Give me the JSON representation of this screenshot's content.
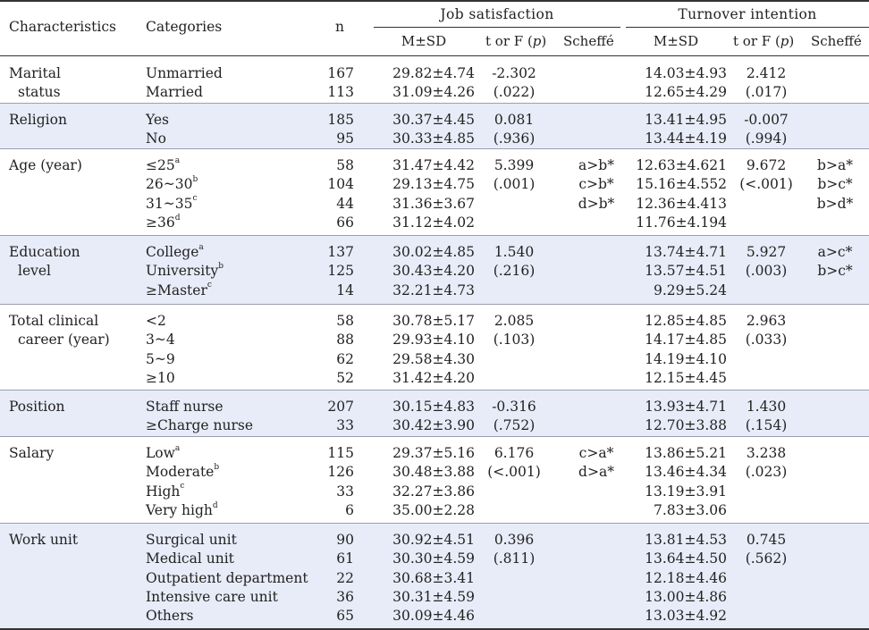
{
  "header": {
    "characteristics": "Characteristics",
    "categories": "Categories",
    "n": "n",
    "job_satisfaction": "Job satisfaction",
    "turnover_intention": "Turnover intention",
    "msd": "M±SD",
    "t_or_f_prefix": "t or F (",
    "p": "p",
    "t_or_f_suffix": ")",
    "scheffe": "Scheffé"
  },
  "colors": {
    "band": "#e8ecf8",
    "rule": "#333333",
    "text": "#222222"
  },
  "groups": [
    {
      "label": [
        "Marital",
        "status"
      ],
      "shaded": false,
      "rows": [
        {
          "cat": "Unmarried",
          "sup": "",
          "n": "167",
          "js_msd": "29.82±4.74",
          "js_stat": "-2.302",
          "js_sch": "",
          "ti_msd": "14.03±4.93",
          "ti_stat": "2.412",
          "ti_sch": ""
        },
        {
          "cat": "Married",
          "sup": "",
          "n": "113",
          "js_msd": "31.09±4.26",
          "js_stat": "(.022)",
          "js_sch": "",
          "ti_msd": "12.65±4.29",
          "ti_stat": "(.017)",
          "ti_sch": ""
        }
      ]
    },
    {
      "label": [
        "Religion"
      ],
      "shaded": true,
      "rows": [
        {
          "cat": "Yes",
          "sup": "",
          "n": "185",
          "js_msd": "30.37±4.45",
          "js_stat": "0.081",
          "js_sch": "",
          "ti_msd": "13.41±4.95",
          "ti_stat": "-0.007",
          "ti_sch": ""
        },
        {
          "cat": "No",
          "sup": "",
          "n": "95",
          "js_msd": "30.33±4.85",
          "js_stat": "(.936)",
          "js_sch": "",
          "ti_msd": "13.44±4.19",
          "ti_stat": "(.994)",
          "ti_sch": ""
        }
      ]
    },
    {
      "label": [
        "Age (year)"
      ],
      "shaded": false,
      "rows": [
        {
          "cat": "≤25",
          "sup": "a",
          "n": "58",
          "js_msd": "31.47±4.42",
          "js_stat": "5.399",
          "js_sch": "a>b*",
          "ti_msd": "12.63±4.621",
          "ti_stat": "9.672",
          "ti_sch": "b>a*"
        },
        {
          "cat": "26~30",
          "sup": "b",
          "n": "104",
          "js_msd": "29.13±4.75",
          "js_stat": "(.001)",
          "js_sch": "c>b*",
          "ti_msd": "15.16±4.552",
          "ti_stat": "(<.001)",
          "ti_sch": "b>c*"
        },
        {
          "cat": "31~35",
          "sup": "c",
          "n": "44",
          "js_msd": "31.36±3.67",
          "js_stat": "",
          "js_sch": "d>b*",
          "ti_msd": "12.36±4.413",
          "ti_stat": "",
          "ti_sch": "b>d*"
        },
        {
          "cat": "≥36",
          "sup": "d",
          "n": "66",
          "js_msd": "31.12±4.02",
          "js_stat": "",
          "js_sch": "",
          "ti_msd": "11.76±4.194",
          "ti_stat": "",
          "ti_sch": ""
        }
      ]
    },
    {
      "label": [
        "Education",
        "level"
      ],
      "shaded": true,
      "rows": [
        {
          "cat": "College",
          "sup": "a",
          "n": "137",
          "js_msd": "30.02±4.85",
          "js_stat": "1.540",
          "js_sch": "",
          "ti_msd": "13.74±4.71",
          "ti_stat": "5.927",
          "ti_sch": "a>c*"
        },
        {
          "cat": "University",
          "sup": "b",
          "n": "125",
          "js_msd": "30.43±4.20",
          "js_stat": "(.216)",
          "js_sch": "",
          "ti_msd": "13.57±4.51",
          "ti_stat": "(.003)",
          "ti_sch": "b>c*"
        },
        {
          "cat": "≥Master",
          "sup": "c",
          "n": "14",
          "js_msd": "32.21±4.73",
          "js_stat": "",
          "js_sch": "",
          "ti_msd": "9.29±5.24",
          "ti_stat": "",
          "ti_sch": ""
        }
      ]
    },
    {
      "label": [
        "Total clinical",
        "career (year)"
      ],
      "shaded": false,
      "rows": [
        {
          "cat": "<2",
          "sup": "",
          "n": "58",
          "js_msd": "30.78±5.17",
          "js_stat": "2.085",
          "js_sch": "",
          "ti_msd": "12.85±4.85",
          "ti_stat": "2.963",
          "ti_sch": ""
        },
        {
          "cat": "3~4",
          "sup": "",
          "n": "88",
          "js_msd": "29.93±4.10",
          "js_stat": "(.103)",
          "js_sch": "",
          "ti_msd": "14.17±4.85",
          "ti_stat": "(.033)",
          "ti_sch": ""
        },
        {
          "cat": "5~9",
          "sup": "",
          "n": "62",
          "js_msd": "29.58±4.30",
          "js_stat": "",
          "js_sch": "",
          "ti_msd": "14.19±4.10",
          "ti_stat": "",
          "ti_sch": ""
        },
        {
          "cat": "≥10",
          "sup": "",
          "n": "52",
          "js_msd": "31.42±4.20",
          "js_stat": "",
          "js_sch": "",
          "ti_msd": "12.15±4.45",
          "ti_stat": "",
          "ti_sch": ""
        }
      ]
    },
    {
      "label": [
        "Position"
      ],
      "shaded": true,
      "rows": [
        {
          "cat": "Staff nurse",
          "sup": "",
          "n": "207",
          "js_msd": "30.15±4.83",
          "js_stat": "-0.316",
          "js_sch": "",
          "ti_msd": "13.93±4.71",
          "ti_stat": "1.430",
          "ti_sch": ""
        },
        {
          "cat": "≥Charge nurse",
          "sup": "",
          "n": "33",
          "js_msd": "30.42±3.90",
          "js_stat": "(.752)",
          "js_sch": "",
          "ti_msd": "12.70±3.88",
          "ti_stat": "(.154)",
          "ti_sch": ""
        }
      ]
    },
    {
      "label": [
        "Salary"
      ],
      "shaded": false,
      "rows": [
        {
          "cat": "Low",
          "sup": "a",
          "n": "115",
          "js_msd": "29.37±5.16",
          "js_stat": "6.176",
          "js_sch": "c>a*",
          "ti_msd": "13.86±5.21",
          "ti_stat": "3.238",
          "ti_sch": ""
        },
        {
          "cat": "Moderate",
          "sup": "b",
          "n": "126",
          "js_msd": "30.48±3.88",
          "js_stat": "(<.001)",
          "js_sch": "d>a*",
          "ti_msd": "13.46±4.34",
          "ti_stat": "(.023)",
          "ti_sch": ""
        },
        {
          "cat": "High",
          "sup": "c",
          "n": "33",
          "js_msd": "32.27±3.86",
          "js_stat": "",
          "js_sch": "",
          "ti_msd": "13.19±3.91",
          "ti_stat": "",
          "ti_sch": ""
        },
        {
          "cat": "Very high",
          "sup": "d",
          "n": "6",
          "js_msd": "35.00±2.28",
          "js_stat": "",
          "js_sch": "",
          "ti_msd": "7.83±3.06",
          "ti_stat": "",
          "ti_sch": ""
        }
      ]
    },
    {
      "label": [
        "Work unit"
      ],
      "shaded": true,
      "rows": [
        {
          "cat": "Surgical unit",
          "sup": "",
          "n": "90",
          "js_msd": "30.92±4.51",
          "js_stat": "0.396",
          "js_sch": "",
          "ti_msd": "13.81±4.53",
          "ti_stat": "0.745",
          "ti_sch": ""
        },
        {
          "cat": "Medical unit",
          "sup": "",
          "n": "61",
          "js_msd": "30.30±4.59",
          "js_stat": "(.811)",
          "js_sch": "",
          "ti_msd": "13.64±4.50",
          "ti_stat": "(.562)",
          "ti_sch": ""
        },
        {
          "cat": "Outpatient department",
          "sup": "",
          "n": "22",
          "js_msd": "30.68±3.41",
          "js_stat": "",
          "js_sch": "",
          "ti_msd": "12.18±4.46",
          "ti_stat": "",
          "ti_sch": ""
        },
        {
          "cat": "Intensive care unit",
          "sup": "",
          "n": "36",
          "js_msd": "30.31±4.59",
          "js_stat": "",
          "js_sch": "",
          "ti_msd": "13.00±4.86",
          "ti_stat": "",
          "ti_sch": ""
        },
        {
          "cat": "Others",
          "sup": "",
          "n": "65",
          "js_msd": "30.09±4.46",
          "js_stat": "",
          "js_sch": "",
          "ti_msd": "13.03±4.92",
          "ti_stat": "",
          "ti_sch": ""
        }
      ]
    }
  ]
}
